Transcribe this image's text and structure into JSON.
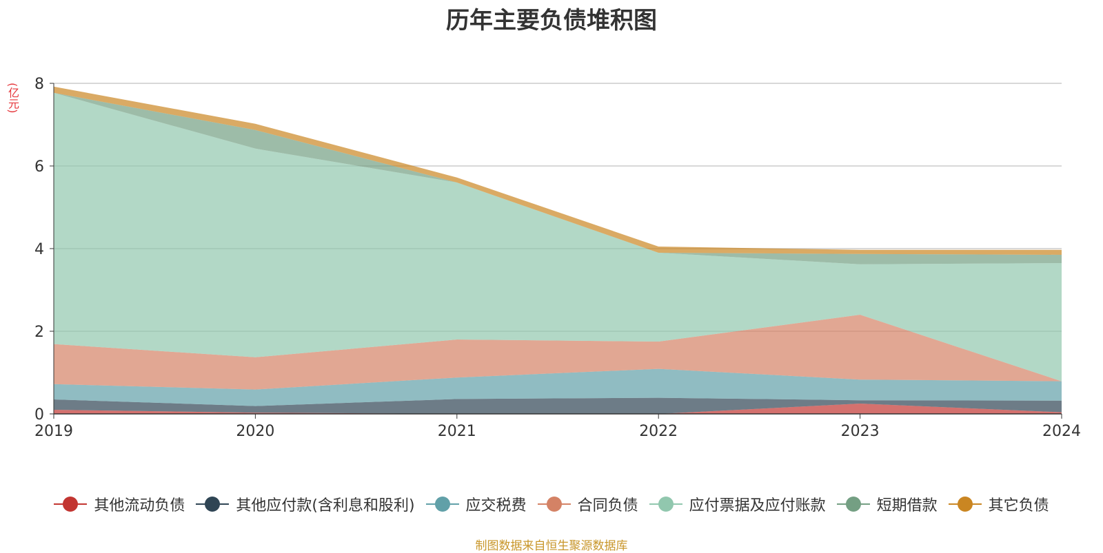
{
  "chart_data": {
    "type": "area",
    "stacked": true,
    "title": "历年主要负债堆积图",
    "unit_label": "(亿元)",
    "x": [
      "2019",
      "2020",
      "2021",
      "2022",
      "2023",
      "2024"
    ],
    "ylim": [
      0,
      8
    ],
    "yticks": [
      "0",
      "2",
      "4",
      "6",
      "8"
    ],
    "grid": true,
    "legend_position": "bottom",
    "series": [
      {
        "name": "其他流动负债",
        "color": "#c23531",
        "values": [
          0.1,
          0.03,
          0.0,
          0.0,
          0.25,
          0.04
        ]
      },
      {
        "name": "其他应付款(含利息和股利)",
        "color": "#2f4554",
        "values": [
          0.25,
          0.16,
          0.36,
          0.39,
          0.08,
          0.28
        ]
      },
      {
        "name": "应交税费",
        "color": "#61a0a8",
        "values": [
          0.37,
          0.4,
          0.52,
          0.7,
          0.5,
          0.47
        ]
      },
      {
        "name": "合同负债",
        "color": "#d48265",
        "values": [
          0.97,
          0.78,
          0.92,
          0.66,
          1.57,
          0.0
        ]
      },
      {
        "name": "应付票据及应付账款",
        "color": "#91c7ae",
        "values": [
          6.08,
          5.05,
          3.8,
          2.15,
          1.22,
          2.86
        ]
      },
      {
        "name": "短期借款",
        "color": "#749f83",
        "values": [
          0.0,
          0.45,
          0.0,
          0.0,
          0.25,
          0.2
        ]
      },
      {
        "name": "其它负债",
        "color": "#ca8622",
        "values": [
          0.15,
          0.15,
          0.12,
          0.15,
          0.1,
          0.12
        ]
      }
    ]
  },
  "source_note": "制图数据来自恒生聚源数据库"
}
